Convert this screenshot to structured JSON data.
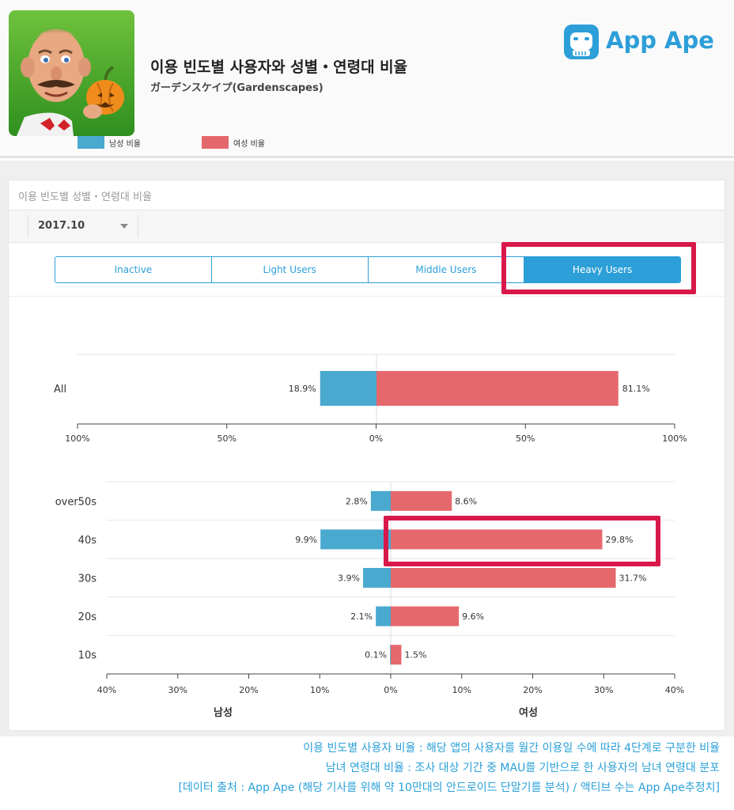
{
  "header": {
    "title": "이용 빈도별 사용자와 성별・연령대 비율",
    "subtitle": "ガーデンスケイプ(Gardenscapes)",
    "brand": "App Ape"
  },
  "card": {
    "title": "이용 빈도별 성별・연령대 비율",
    "date_value": "2017.10",
    "tabs": [
      {
        "label": "Inactive",
        "active": false
      },
      {
        "label": "Light Users",
        "active": false
      },
      {
        "label": "Middle Users",
        "active": false
      },
      {
        "label": "Heavy Users",
        "active": true
      }
    ],
    "legend": {
      "male": "남성 비율",
      "female": "여성 비율"
    }
  },
  "colors": {
    "male": "#4aa9cf",
    "female": "#e5686d",
    "accent": "#2d9fd8",
    "highlight": "#d9184a"
  },
  "chart_data": [
    {
      "type": "bar",
      "orientation": "horizontal-diverging",
      "categories": [
        "All"
      ],
      "series": [
        {
          "name": "남성 비율",
          "values": [
            18.9
          ]
        },
        {
          "name": "여성 비율",
          "values": [
            81.1
          ]
        }
      ],
      "value_labels": {
        "male": [
          "18.9%"
        ],
        "female": [
          "81.1%"
        ]
      },
      "xlim": [
        -100,
        100
      ],
      "ticks": [
        "100%",
        "50%",
        "0%",
        "50%",
        "100%"
      ]
    },
    {
      "type": "bar",
      "orientation": "horizontal-diverging",
      "categories": [
        "over50s",
        "40s",
        "30s",
        "20s",
        "10s"
      ],
      "series": [
        {
          "name": "남성 비율",
          "values": [
            2.8,
            9.9,
            3.9,
            2.1,
            0.1
          ]
        },
        {
          "name": "여성 비율",
          "values": [
            8.6,
            29.8,
            31.7,
            9.6,
            1.5
          ]
        }
      ],
      "value_labels": {
        "male": [
          "2.8%",
          "9.9%",
          "3.9%",
          "2.1%",
          "0.1%"
        ],
        "female": [
          "8.6%",
          "29.8%",
          "31.7%",
          "9.6%",
          "1.5%"
        ]
      },
      "xlim": [
        -40,
        40
      ],
      "ticks": [
        "40%",
        "30%",
        "20%",
        "10%",
        "0%",
        "10%",
        "20%",
        "30%",
        "40%"
      ],
      "xlabel_left": "남성",
      "xlabel_right": "여성"
    }
  ],
  "footer": {
    "line1": "이용 빈도별 사용자 비율 : 해당 앱의 사용자를 월간 이용일 수에 따라 4단계로 구분한 비율",
    "line2": "남녀 연령대 비율 : 조사 대상 기간 중 MAU를 기반으로 한 사용자의 남녀 연령대 분포",
    "line3": "[데이터 출처 : App Ape (해당 기사를 위해 약 10만대의 안드로이드 단말기를 분석) / 액티브 수는 App Ape추정치]"
  }
}
